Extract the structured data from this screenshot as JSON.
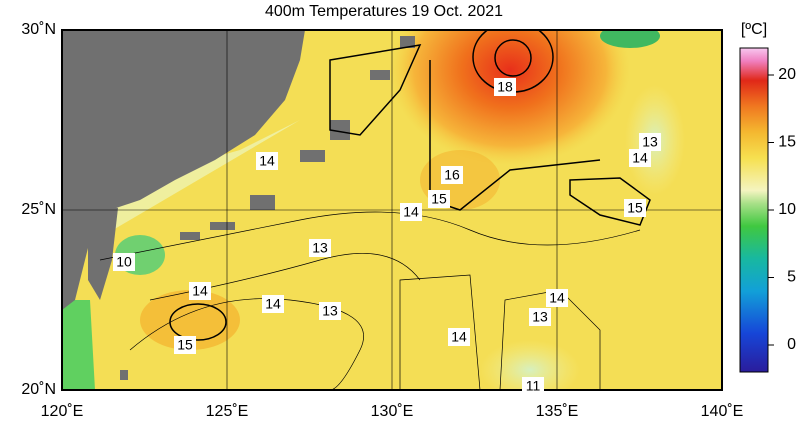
{
  "title": "400m Temperatures  19 Oct. 2021",
  "lon_ticks": [
    {
      "value": 120,
      "label": "120˚E"
    },
    {
      "value": 125,
      "label": "125˚E"
    },
    {
      "value": 130,
      "label": "130˚E"
    },
    {
      "value": 135,
      "label": "135˚E"
    },
    {
      "value": 140,
      "label": "140˚E"
    }
  ],
  "lat_ticks": [
    {
      "value": 20,
      "label": "20˚N"
    },
    {
      "value": 25,
      "label": "25˚N"
    },
    {
      "value": 30,
      "label": "30˚N"
    }
  ],
  "lon_range": [
    120,
    140
  ],
  "lat_range": [
    20,
    30
  ],
  "colorbar": {
    "unit": "[ºC]",
    "range": [
      -2,
      22
    ],
    "ticks": [
      0,
      5,
      10,
      15,
      20
    ]
  },
  "contour_labels": [
    18,
    14,
    13,
    14,
    16,
    15,
    14,
    15,
    13,
    10,
    14,
    14,
    13,
    14,
    13,
    14,
    15,
    11
  ]
}
